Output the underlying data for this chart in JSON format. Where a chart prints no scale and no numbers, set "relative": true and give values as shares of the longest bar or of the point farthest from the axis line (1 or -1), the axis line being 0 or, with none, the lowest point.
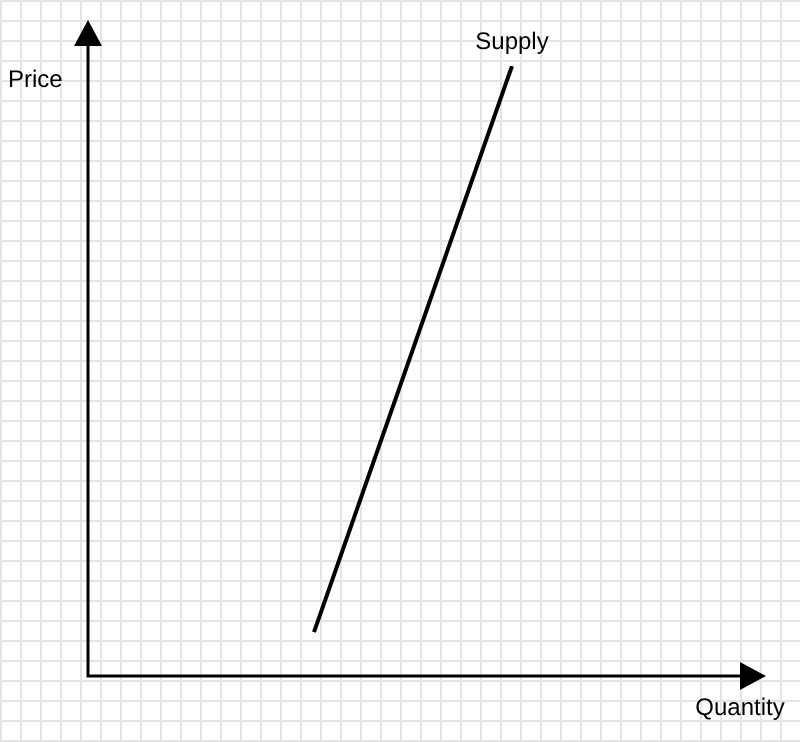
{
  "chart_data": {
    "type": "line",
    "xlabel": "Quantity",
    "ylabel": "Price",
    "relative": true,
    "categories": [
      null,
      null
    ],
    "tick_labels": false,
    "legend": false,
    "marker": "none",
    "line_style": "solid",
    "series": [
      {
        "name": "Supply",
        "color": "#000000",
        "values": [
          0.072,
          1
        ]
      }
    ]
  }
}
